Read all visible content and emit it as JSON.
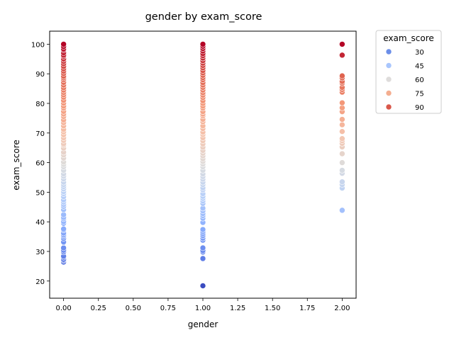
{
  "chart_data": {
    "type": "scatter",
    "title": "gender by exam_score",
    "xlabel": "gender",
    "ylabel": "exam_score",
    "xlim": [
      -0.1,
      2.1
    ],
    "ylim": [
      14.2,
      104.4
    ],
    "x_ticks": [
      "0.00",
      "0.25",
      "0.50",
      "0.75",
      "1.00",
      "1.25",
      "1.50",
      "1.75",
      "2.00"
    ],
    "y_ticks": [
      "20",
      "30",
      "40",
      "50",
      "60",
      "70",
      "80",
      "90",
      "100"
    ],
    "grid": false,
    "colormap": "coolwarm",
    "color_range": [
      18.4,
      100
    ],
    "legend": {
      "title": "exam_score",
      "placement": "outside-top-right",
      "entries": [
        {
          "label": "30",
          "color": "#6b8ee8"
        },
        {
          "label": "45",
          "color": "#a9c6fd"
        },
        {
          "label": "60",
          "color": "#dedcdb"
        },
        {
          "label": "75",
          "color": "#f4ae90"
        },
        {
          "label": "90",
          "color": "#d9574a"
        }
      ]
    },
    "series": [
      {
        "x": 0,
        "y": [
          26.4,
          27.0,
          27.3,
          28.0,
          28.4,
          29.8,
          30.4,
          31.2,
          33.0,
          33.2,
          34.4,
          35.1,
          35.6,
          36.2,
          37.2,
          37.6,
          39.5,
          40.1,
          41.0,
          41.5,
          42.4,
          44.1,
          45.2,
          45.9,
          46.7,
          47.4,
          48.5,
          49.5,
          50.2,
          51.1,
          51.9,
          52.6,
          53.4,
          54.5,
          55.4,
          56.2,
          57.4,
          58.6,
          59.4,
          60.2,
          61.5,
          62.6,
          63.5,
          64.9,
          65.9,
          66.4,
          67.5,
          68.4,
          69.4,
          70.4,
          71.2,
          72.4,
          73.5,
          74.4,
          75.6,
          76.4,
          77.3,
          78.4,
          79.1,
          80.1,
          81.0,
          82.1,
          82.9,
          83.7,
          84.5,
          85.3,
          86.2,
          87.1,
          88.0,
          88.6,
          89.2,
          90.1,
          90.9,
          91.7,
          92.5,
          93.4,
          94.2,
          95.0,
          95.9,
          96.3,
          97.1,
          98.0,
          98.4,
          99.2,
          100
        ]
      },
      {
        "x": 1,
        "y": [
          18.4,
          27.6,
          29.8,
          30.3,
          31.2,
          33.8,
          34.5,
          35.3,
          36.0,
          36.7,
          37.4,
          39.8,
          41.2,
          42.1,
          42.8,
          43.7,
          44.6,
          46.2,
          47.1,
          47.9,
          48.6,
          49.5,
          50.8,
          51.5,
          52.6,
          53.4,
          54.4,
          55.3,
          56.2,
          57.4,
          58.6,
          59.5,
          60.4,
          61.3,
          62.3,
          63.2,
          64.1,
          65.2,
          66.3,
          67.4,
          68.4,
          69.5,
          70.3,
          71.5,
          72.4,
          73.8,
          74.6,
          75.8,
          76.4,
          77.2,
          78.4,
          79.1,
          80.0,
          80.9,
          82.0,
          82.8,
          83.6,
          84.5,
          85.4,
          86.2,
          87.0,
          88.0,
          88.7,
          89.5,
          90.3,
          91.1,
          92.0,
          92.8,
          93.6,
          94.4,
          95.3,
          96.1,
          96.8,
          97.7,
          98.5,
          99.3,
          100
        ]
      },
      {
        "x": 2,
        "y": [
          43.9,
          51.4,
          52.6,
          53.5,
          56.4,
          57.4,
          60.0,
          63.0,
          65.3,
          66.5,
          67.4,
          68.1,
          70.5,
          72.8,
          74.6,
          77.2,
          78.5,
          80.2,
          83.8,
          84.7,
          85.4,
          86.8,
          87.4,
          88.6,
          89.3,
          96.3,
          100
        ]
      }
    ]
  }
}
